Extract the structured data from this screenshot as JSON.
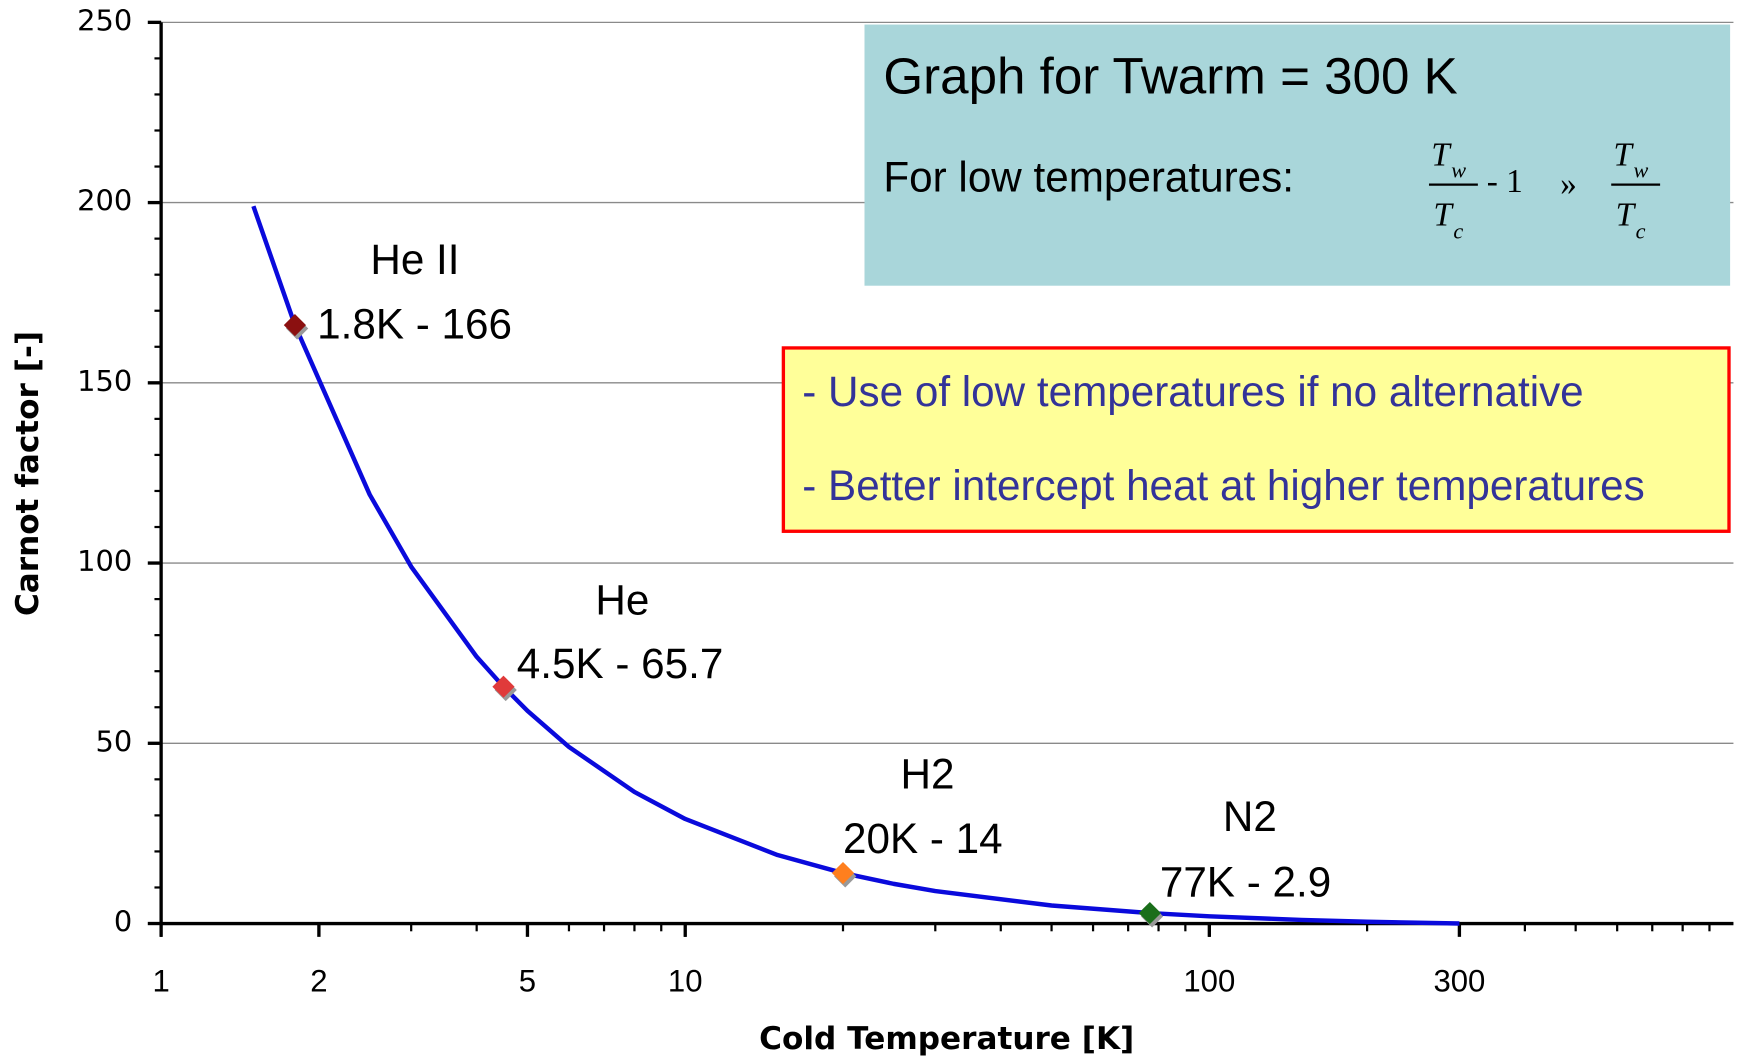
{
  "chart_data": {
    "type": "line",
    "xlabel": "Cold Temperature [K]",
    "ylabel": "Carnot factor [-]",
    "xscale": "log",
    "xlim": [
      1,
      1000
    ],
    "ylim": [
      0,
      250
    ],
    "xticks": [
      1,
      2,
      5,
      10,
      100,
      300
    ],
    "yticks": [
      0,
      50,
      100,
      150,
      200,
      250
    ],
    "grid": true,
    "series": [
      {
        "name": "Carnot factor",
        "color": "#0a0adc",
        "x": [
          1.5,
          1.8,
          2.5,
          3,
          4,
          4.5,
          5,
          6,
          8,
          10,
          15,
          20,
          25,
          30,
          50,
          77,
          100,
          150,
          200,
          300
        ],
        "values": [
          199,
          166,
          119,
          99,
          74,
          65.7,
          59,
          49,
          36.5,
          29,
          19,
          14,
          11,
          9,
          5,
          2.9,
          2,
          1,
          0.5,
          0
        ]
      }
    ],
    "points": {
      "names": [
        "He II",
        "He",
        "H2",
        "N2"
      ],
      "x": [
        1.8,
        4.5,
        20,
        77
      ],
      "values": [
        166,
        65.7,
        14,
        2.9
      ],
      "value_labels": [
        "1.8K - 166",
        "4.5K - 65.7",
        "20K - 14",
        "77K - 2.9"
      ],
      "colors": [
        "#8b1010",
        "#e03a3a",
        "#ff7f1e",
        "#1a6e1a"
      ]
    },
    "info_box": {
      "title": "Graph for Twarm = 300 K",
      "text": "For low temperatures:",
      "formula": {
        "T": "T",
        "w": "w",
        "c": "c",
        "minus_one": "- 1",
        "approx": "»"
      }
    },
    "note_box": {
      "lines": [
        "- Use of low temperatures if no alternative",
        "- Better intercept heat at higher temperatures"
      ]
    }
  }
}
